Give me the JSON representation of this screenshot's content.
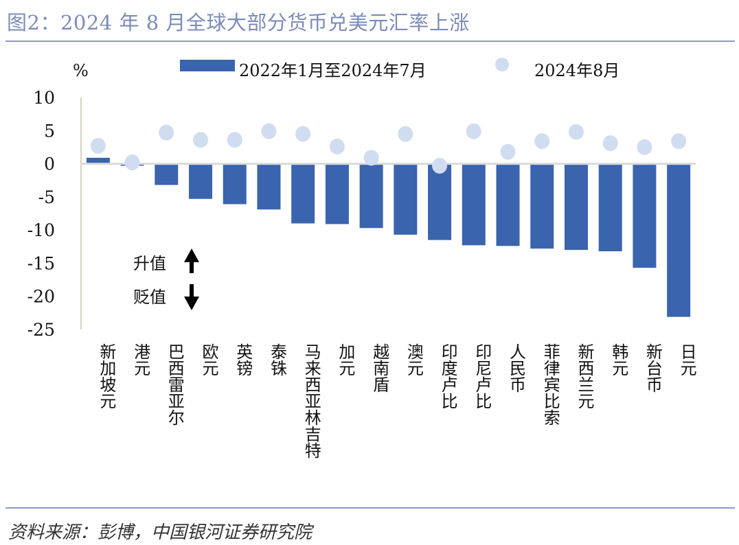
{
  "title": "图2：2024 年 8 月全球大部分货币兑美元汇率上涨",
  "source": "资料来源：彭博，中国银河证券研究院",
  "chart_data": {
    "type": "bar",
    "ylabel": "%",
    "ylim": [
      -25,
      10
    ],
    "yticks": [
      10,
      5,
      0,
      -5,
      -10,
      -15,
      -20,
      -25
    ],
    "grid": false,
    "legend_placement": "top",
    "categories": [
      "新加坡元",
      "港元",
      "巴西雷亚尔",
      "欧元",
      "英镑",
      "泰铢",
      "马来西亚林吉特",
      "加元",
      "越南盾",
      "澳元",
      "印度卢比",
      "印尼卢比",
      "人民币",
      "菲律宾比索",
      "新西兰元",
      "韩元",
      "新台币",
      "日元"
    ],
    "series": [
      {
        "name": "2022年1月至2024年7月",
        "kind": "bar",
        "color": "#3a64ad",
        "values": [
          0.9,
          -0.3,
          -3.2,
          -5.3,
          -6.1,
          -6.9,
          -9.0,
          -9.1,
          -9.7,
          -10.7,
          -11.5,
          -12.3,
          -12.4,
          -12.8,
          -13.0,
          -13.2,
          -15.7,
          -23.1
        ]
      },
      {
        "name": "2024年8月",
        "kind": "dot",
        "color": "#d0ddf0",
        "values": [
          2.7,
          0.2,
          4.7,
          3.6,
          3.6,
          4.9,
          4.5,
          2.6,
          0.9,
          4.5,
          -0.3,
          4.9,
          1.8,
          3.4,
          4.8,
          3.1,
          2.5,
          3.4
        ]
      }
    ],
    "annotations": {
      "up": "升值",
      "down": "贬值"
    }
  }
}
